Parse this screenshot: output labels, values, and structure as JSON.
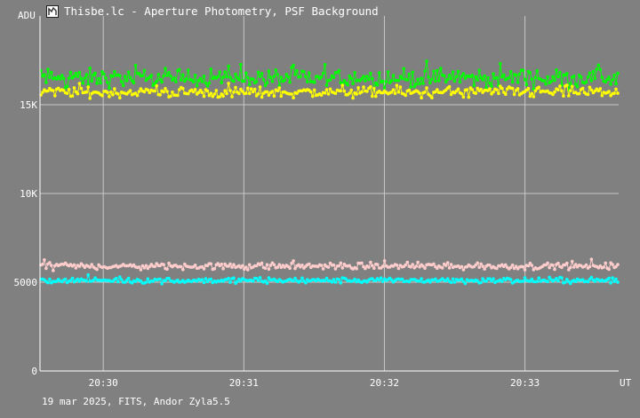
{
  "window": {
    "title": "Thisbe.lc - Aperture Photometry, PSF Background",
    "icon": "light-curve-app-icon"
  },
  "footer": {
    "caption": "19 mar 2025, FITS, Andor Zyla5.5"
  },
  "chart_data": {
    "type": "scatter",
    "ylabel": "ADU",
    "xlabel": "UT",
    "ylim": [
      0,
      20000
    ],
    "xlim": [
      "20:29:33",
      "20:33:40"
    ],
    "grid": true,
    "y_ticks": [
      {
        "value": 0,
        "label": "0"
      },
      {
        "value": 5000,
        "label": "5000"
      },
      {
        "value": 10000,
        "label": "10K"
      },
      {
        "value": 15000,
        "label": "15K"
      }
    ],
    "x_ticks": [
      {
        "value": "20:30:00",
        "label": "20:30"
      },
      {
        "value": "20:31:00",
        "label": "20:31"
      },
      {
        "value": "20:32:00",
        "label": "20:32"
      },
      {
        "value": "20:33:00",
        "label": "20:33"
      }
    ],
    "background": "#808080",
    "grid_color": "#c8c8c8",
    "series": [
      {
        "color": "#00ff00",
        "marker": "circle",
        "level": 16500,
        "spread": 500
      },
      {
        "color": "#ffff00",
        "marker": "circle",
        "level": 15700,
        "spread": 300
      },
      {
        "color": "#ffcccc",
        "marker": "circle",
        "level": 5900,
        "spread": 180
      },
      {
        "color": "#00ffff",
        "marker": "circle",
        "level": 5100,
        "spread": 150
      }
    ]
  }
}
